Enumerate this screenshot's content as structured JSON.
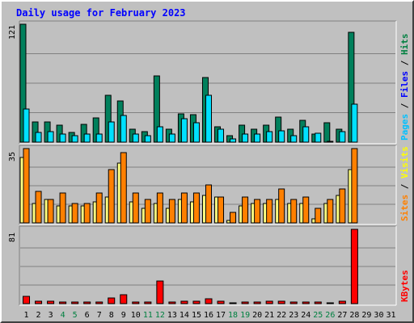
{
  "chart_data": {
    "type": "bar",
    "title": "Daily usage for February 2023",
    "days": [
      "1",
      "2",
      "3",
      "4",
      "5",
      "6",
      "7",
      "8",
      "9",
      "10",
      "11",
      "12",
      "13",
      "14",
      "15",
      "16",
      "17",
      "18",
      "19",
      "20",
      "21",
      "22",
      "23",
      "24",
      "25",
      "26",
      "27",
      "28",
      "29",
      "30",
      "31"
    ],
    "weekend_days": [
      "4",
      "5",
      "11",
      "12",
      "18",
      "19",
      "25",
      "26"
    ],
    "panels": [
      {
        "id": "hits",
        "max_label": "121",
        "ymax": 121,
        "legend": [
          {
            "text": "Pages",
            "color": "#00c0ff"
          },
          {
            "text": "Files",
            "color": "#0000ff"
          },
          {
            "text": "Hits",
            "color": "#008040"
          }
        ],
        "series": [
          {
            "name": "Hits",
            "color": "#00805c",
            "values": [
              121,
              21,
              21,
              17,
              10,
              18,
              25,
              48,
              42,
              13,
              11,
              68,
              13,
              29,
              28,
              66,
              16,
              7,
              17,
              13,
              17,
              26,
              13,
              22,
              8,
              20,
              13,
              113,
              0,
              0,
              0
            ]
          },
          {
            "name": "Files",
            "color": "#00e0ff",
            "values": [
              34,
              10,
              11,
              8,
              7,
              8,
              8,
              21,
              27,
              8,
              7,
              16,
              8,
              24,
              20,
              48,
              13,
              3,
              8,
              8,
              11,
              12,
              7,
              16,
              9,
              1,
              11,
              39,
              0,
              0,
              0
            ]
          },
          {
            "name": "Pages",
            "color": "#00c0ff",
            "values": [
              0,
              0,
              0,
              0,
              0,
              0,
              0,
              0,
              0,
              0,
              0,
              0,
              0,
              0,
              0,
              0,
              0,
              0,
              0,
              0,
              0,
              0,
              0,
              0,
              0,
              0,
              0,
              0,
              0,
              0,
              0
            ]
          }
        ]
      },
      {
        "id": "visits",
        "max_label": "35",
        "ymax": 35,
        "legend": [
          {
            "text": "Sites",
            "color": "#ff8000"
          },
          {
            "text": "Visits",
            "color": "#ffff00"
          }
        ],
        "series": [
          {
            "name": "Visits",
            "color": "#ffff80",
            "values": [
              31,
              9,
              11,
              8,
              8,
              8,
              10,
              12,
              28,
              10,
              7,
              9,
              7,
              11,
              10,
              13,
              12,
              1,
              8,
              9,
              9,
              11,
              9,
              9,
              2,
              9,
              13,
              25,
              0,
              0,
              0
            ]
          },
          {
            "name": "Sites",
            "color": "#ff8000",
            "values": [
              35,
              15,
              11,
              14,
              9,
              9,
              14,
              25,
              33,
              14,
              11,
              14,
              11,
              14,
              14,
              18,
              12,
              5,
              12,
              11,
              11,
              16,
              11,
              12,
              7,
              11,
              16,
              35,
              0,
              0,
              0
            ]
          }
        ]
      },
      {
        "id": "kbytes",
        "max_label": "81",
        "ymax": 81,
        "legend": [
          {
            "text": "KBytes",
            "color": "#ff0000"
          }
        ],
        "series": [
          {
            "name": "KBytes",
            "color": "#ff0000",
            "values": [
              8,
              3,
              3,
              2,
              2,
              2,
              2,
              6,
              10,
              2,
              2,
              25,
              2,
              3,
              3,
              5,
              3,
              1,
              2,
              2,
              3,
              3,
              2,
              2,
              2,
              1,
              3,
              81,
              0,
              0,
              0
            ]
          }
        ]
      }
    ]
  }
}
